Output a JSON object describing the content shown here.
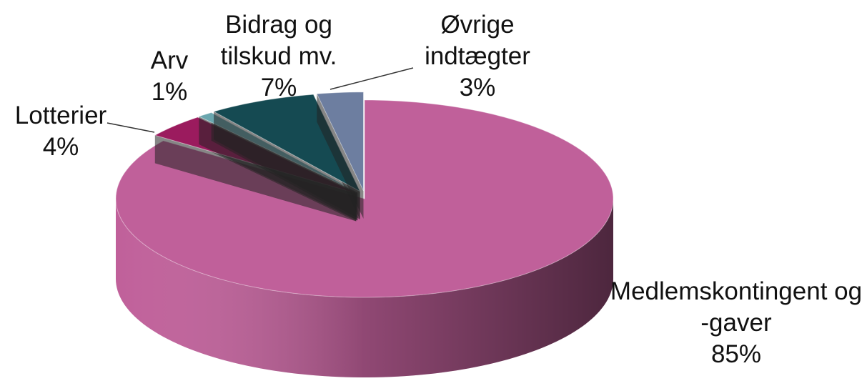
{
  "chart_data": {
    "type": "pie",
    "categories": [
      "Medlemskontingent og -gaver",
      "Lotterier",
      "Arv",
      "Bidrag og tilskud mv.",
      "Øvrige indtægter"
    ],
    "values": [
      85,
      4,
      1,
      7,
      3
    ],
    "value_labels": [
      "85%",
      "4%",
      "1%",
      "7%",
      "3%"
    ],
    "colors": [
      "#c0609a",
      "#9b1b5e",
      "#6aa6ae",
      "#154a52",
      "#6d7ea0"
    ]
  }
}
